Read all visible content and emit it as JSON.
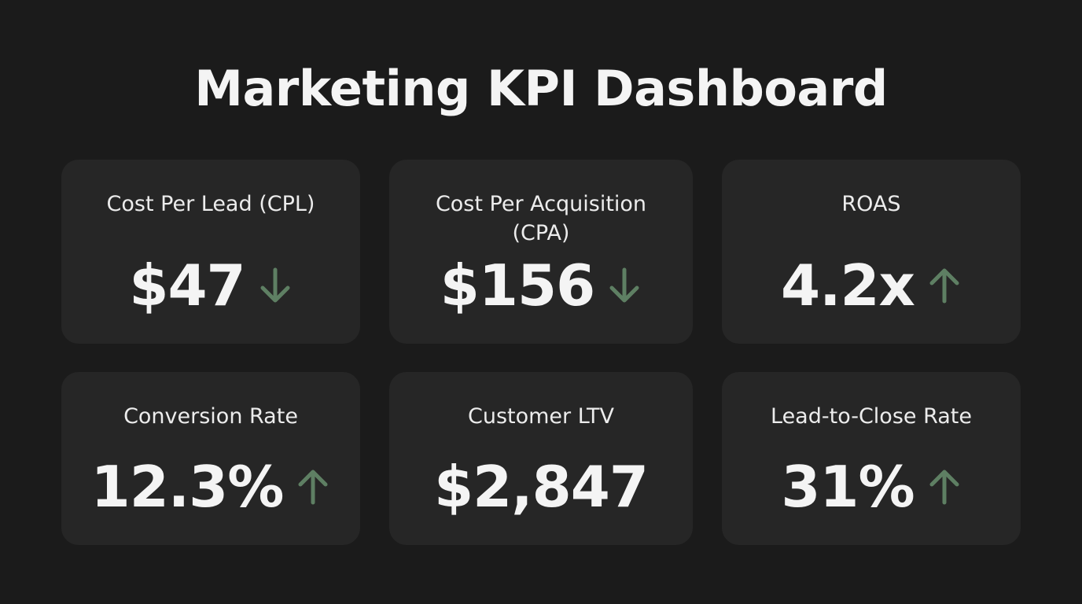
{
  "header": {
    "title": "Marketing KPI Dashboard"
  },
  "cards": [
    {
      "label": "Cost Per Lead (CPL)",
      "value": "$47",
      "trend": "down"
    },
    {
      "label": "Cost Per Acquisition (CPA)",
      "value": "$156",
      "trend": "down"
    },
    {
      "label": "ROAS",
      "value": "4.2x",
      "trend": "up"
    },
    {
      "label": "Conversion Rate",
      "value": "12.3%",
      "trend": "up"
    },
    {
      "label": "Customer LTV",
      "value": "$2,847"
    },
    {
      "label": "Lead-to-Close Rate",
      "value": "31%",
      "trend": "up"
    }
  ],
  "trend_color": "#5e7f63"
}
